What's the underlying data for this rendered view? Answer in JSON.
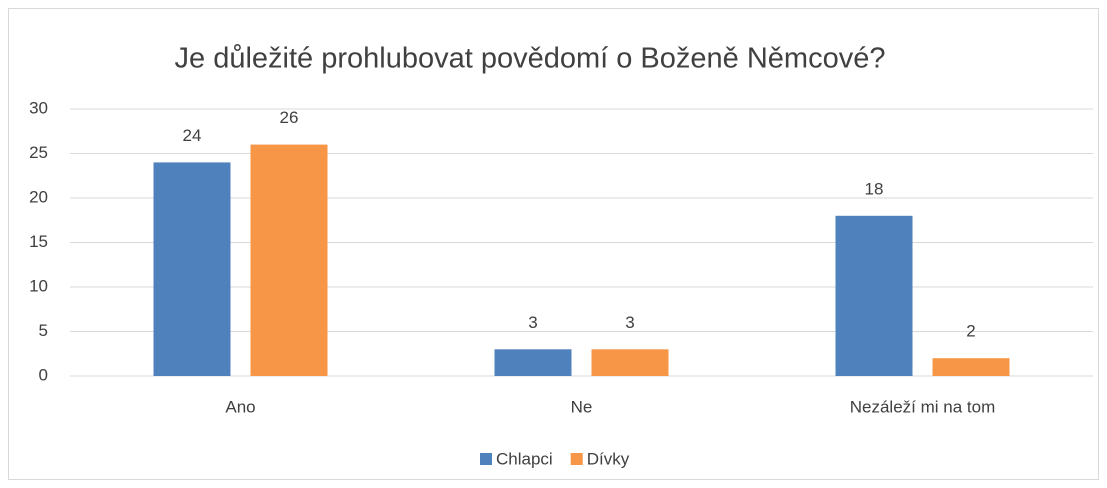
{
  "chart_data": {
    "type": "bar",
    "title": "Je důležité prohlubovat povědomí o Boženě Němcové?",
    "categories": [
      "Ano",
      "Ne",
      "Nezáleží mi na tom"
    ],
    "series": [
      {
        "name": "Chlapci",
        "color": "#4f81bd",
        "values": [
          24,
          3,
          18
        ]
      },
      {
        "name": "Dívky",
        "color": "#f79646",
        "values": [
          26,
          3,
          2
        ]
      }
    ],
    "ylim": [
      0,
      30
    ],
    "yticks": [
      0,
      5,
      10,
      15,
      20,
      25,
      30
    ],
    "grid": true,
    "legend": "bottom"
  }
}
